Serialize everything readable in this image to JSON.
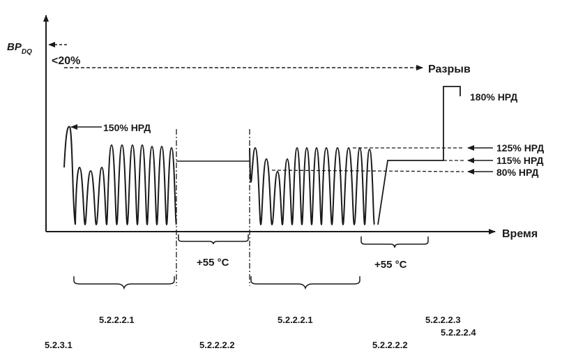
{
  "axes": {
    "y_label_main": "BP",
    "y_label_sub": "DQ",
    "x_label": "Время"
  },
  "annotations": {
    "lt20": "<20%",
    "rupture": "Разрыв",
    "pct180": "180% НРД",
    "pct150": "150% НРД",
    "pct125": "125% НРД",
    "pct115": "115% НРД",
    "pct80": "80% НРД",
    "temp_mid": "+55 °C",
    "temp_right": "+55 °C"
  },
  "clauses": {
    "c1": "5.2.2.2.1",
    "c2": "5.2.2.2.1",
    "c3": "5.2.2.2.3",
    "c4": "5.2.2.2.4",
    "c5": "5.2.3.1",
    "c6": "5.2.2.2.2",
    "c7": "5.2.2.2.2"
  }
}
